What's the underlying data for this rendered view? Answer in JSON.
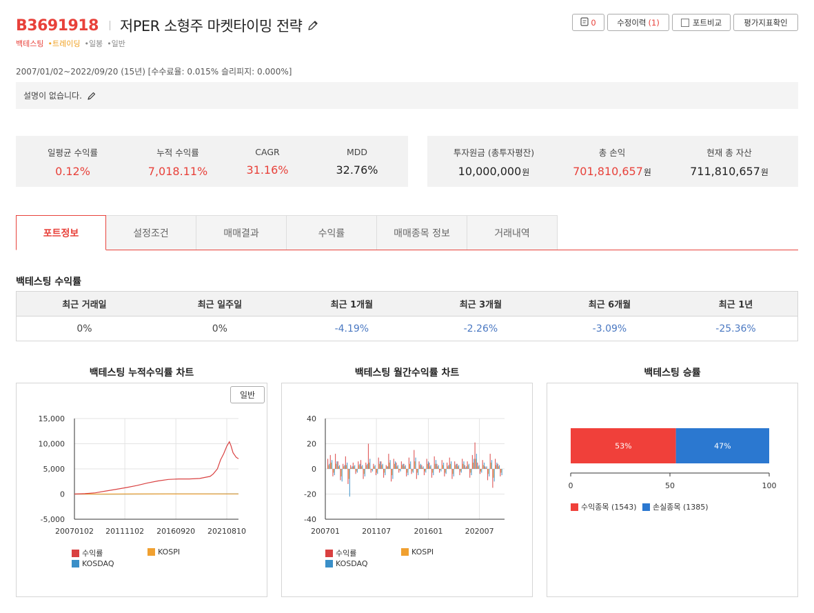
{
  "header": {
    "code": "B3691918",
    "title": "저PER 소형주 마켓타이밍 전략",
    "tags": [
      "백테스팅",
      "•트레이딩",
      "•일봉",
      "•일반"
    ]
  },
  "buttons": {
    "comment_count": "0",
    "history_label": "수정이력",
    "history_count": "(1)",
    "compare_label": "포트비교",
    "eval_label": "평가지표확인"
  },
  "period": "2007/01/02~2022/09/20 (15년) [수수료율: 0.015% 슬리피지: 0.000%]",
  "description": "설명이 없습니다.",
  "stats_left": [
    {
      "label": "일평균 수익률",
      "value": "0.12%",
      "red": true
    },
    {
      "label": "누적 수익률",
      "value": "7,018.11%",
      "red": true
    },
    {
      "label": "CAGR",
      "value": "31.16%",
      "red": true
    },
    {
      "label": "MDD",
      "value": "32.76%",
      "red": false
    }
  ],
  "stats_right": [
    {
      "label": "투자원금 (총투자평잔)",
      "value": "10,000,000",
      "unit": "원",
      "red": false
    },
    {
      "label": "총 손익",
      "value": "701,810,657",
      "unit": "원",
      "red": true
    },
    {
      "label": "현재 총 자산",
      "value": "711,810,657",
      "unit": "원",
      "red": false
    }
  ],
  "tabs": [
    "포트정보",
    "설정조건",
    "매매결과",
    "수익률",
    "매매종목 정보",
    "거래내역"
  ],
  "returns_section": {
    "title": "백테스팅 수익률",
    "headers": [
      "최근 거래일",
      "최근 일주일",
      "최근 1개월",
      "최근 3개월",
      "최근 6개월",
      "최근 1년"
    ],
    "values": [
      "0%",
      "0%",
      "-4.19%",
      "-2.26%",
      "-3.09%",
      "-25.36%"
    ]
  },
  "colors": {
    "accent": "#e8413a",
    "series_return": "#d94040",
    "series_kospi": "#f0a030",
    "series_kosdaq": "#3a8fc8",
    "win": "#f0403a",
    "loss": "#2b78d0",
    "negative_blue": "#4a78c2"
  },
  "charts": {
    "cumulative_title": "백테스팅 누적수익률 차트",
    "monthly_title": "백테스팅 월간수익률 차트",
    "winrate_title": "백테스팅 승률",
    "mode_label": "일반"
  },
  "chart_data": [
    {
      "type": "line",
      "title": "백테스팅 누적수익률 차트",
      "x_tick_labels": [
        "20070102",
        "20111102",
        "20160920",
        "20210810"
      ],
      "y_tick_labels": [
        "15,000",
        "10,000",
        "5,000",
        "0",
        "-5,000"
      ],
      "ylim": [
        -5000,
        15000
      ],
      "grid": true,
      "legend": "bottom",
      "series": [
        {
          "name": "수익률",
          "x": [
            2007.0,
            2008.0,
            2009.0,
            2010.0,
            2011.0,
            2012.0,
            2013.0,
            2014.0,
            2015.0,
            2016.0,
            2017.0,
            2018.0,
            2019.0,
            2020.0,
            2020.3,
            2020.7,
            2021.0,
            2021.3,
            2021.6,
            2021.85,
            2022.0,
            2022.2,
            2022.5,
            2022.72
          ],
          "values": [
            0,
            80,
            250,
            600,
            950,
            1300,
            1700,
            2200,
            2600,
            2900,
            3000,
            3000,
            3100,
            3500,
            4000,
            5000,
            6800,
            8000,
            9500,
            10400,
            9600,
            8200,
            7300,
            7018
          ]
        },
        {
          "name": "KOSPI",
          "x": [
            2007.0,
            2010.0,
            2013.0,
            2016.0,
            2019.0,
            2022.72
          ],
          "values": [
            0,
            5,
            8,
            10,
            20,
            30
          ]
        },
        {
          "name": "KOSDAQ",
          "x": [
            2007.0,
            2010.0,
            2013.0,
            2016.0,
            2019.0,
            2022.72
          ],
          "values": [
            0,
            -10,
            5,
            15,
            10,
            20
          ]
        }
      ]
    },
    {
      "type": "bar",
      "title": "백테스팅 월간수익률 차트",
      "x_tick_labels": [
        "200701",
        "201107",
        "201601",
        "202007"
      ],
      "y_tick_labels": [
        "40",
        "20",
        "0",
        "-20",
        "-40"
      ],
      "ylim": [
        -40,
        40
      ],
      "grid": true,
      "legend": "bottom",
      "series_names": [
        "수익률",
        "KOSPI",
        "KOSDAQ"
      ],
      "series": [
        {
          "name": "수익률",
          "values": [
            8,
            11,
            -6,
            12,
            6,
            -9,
            4,
            10,
            -12,
            3,
            5,
            -4,
            6,
            7,
            -8,
            5,
            20,
            -3,
            4,
            -5,
            9,
            6,
            -7,
            3,
            12,
            -10,
            8,
            5,
            -3,
            6,
            4,
            -6,
            9,
            -4,
            15,
            -8,
            6,
            3,
            -5,
            8,
            5,
            -7,
            10,
            4,
            -3,
            7,
            -6,
            5,
            9,
            -8,
            6,
            4,
            -5,
            8,
            3,
            6,
            -7,
            11,
            21,
            5,
            -4,
            7,
            2,
            -9,
            12,
            -15,
            8,
            4,
            -6
          ]
        },
        {
          "name": "KOSPI",
          "values": [
            3,
            5,
            -3,
            4,
            2,
            -6,
            2,
            3,
            -8,
            1,
            2,
            -2,
            3,
            2,
            -4,
            3,
            5,
            -1,
            2,
            -3,
            4,
            3,
            -3,
            2,
            5,
            -5,
            4,
            2,
            -1,
            3,
            2,
            -3,
            4,
            -2,
            6,
            -3,
            3,
            1,
            -2,
            4,
            2,
            -3,
            4,
            2,
            -1,
            3,
            -3,
            2,
            4,
            -4,
            3,
            2,
            -2,
            4,
            1,
            3,
            -3,
            5,
            8,
            2,
            -2,
            3,
            1,
            -4,
            5,
            -7,
            3,
            2,
            -3
          ]
        },
        {
          "name": "KOSDAQ",
          "values": [
            4,
            7,
            -5,
            6,
            3,
            -10,
            3,
            5,
            -22,
            2,
            3,
            -3,
            4,
            3,
            -6,
            4,
            8,
            -2,
            3,
            -4,
            6,
            4,
            -5,
            2,
            7,
            -8,
            6,
            3,
            -2,
            4,
            3,
            -5,
            6,
            -3,
            9,
            -5,
            4,
            2,
            -3,
            6,
            3,
            -5,
            7,
            3,
            -2,
            5,
            -4,
            3,
            6,
            -6,
            4,
            3,
            -3,
            6,
            2,
            4,
            -5,
            8,
            12,
            3,
            -3,
            5,
            2,
            -6,
            7,
            -10,
            5,
            3,
            -5
          ]
        }
      ]
    },
    {
      "type": "bar",
      "title": "백테스팅 승률",
      "orientation": "horizontal-stacked",
      "x_tick_labels": [
        "0",
        "50",
        "100"
      ],
      "xlim": [
        0,
        100
      ],
      "series": [
        {
          "name": "수익종목",
          "count_label": "(1543)",
          "value": 53,
          "label": "53%"
        },
        {
          "name": "손실종목",
          "count_label": "(1385)",
          "value": 47,
          "label": "47%"
        }
      ],
      "legend": "bottom-left"
    }
  ]
}
